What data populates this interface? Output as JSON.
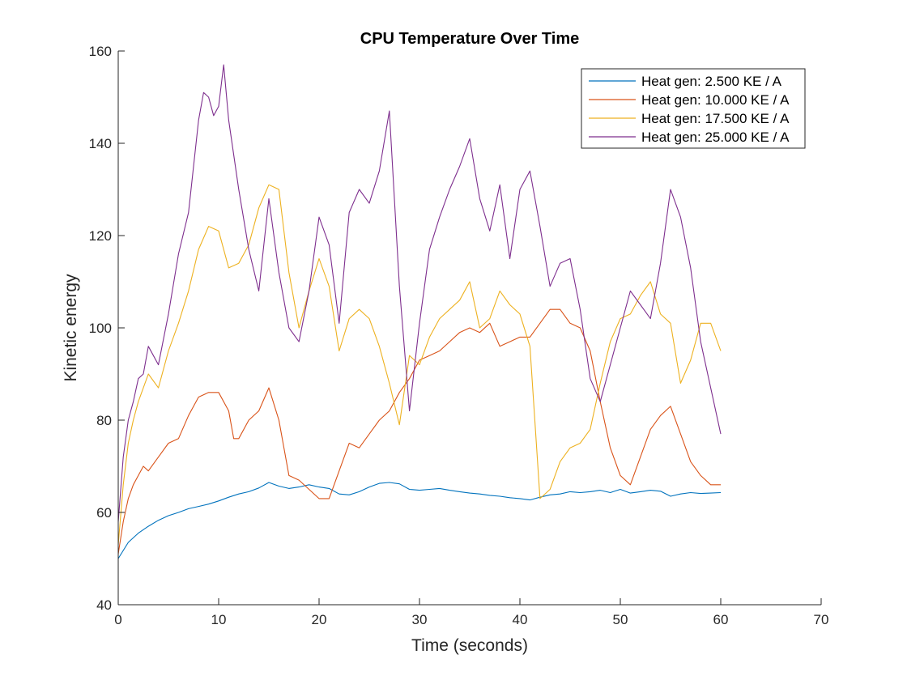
{
  "chart_data": {
    "type": "line",
    "title": "CPU Temperature Over Time",
    "xlabel": "Time (seconds)",
    "ylabel": "Kinetic energy",
    "xlim": [
      0,
      70
    ],
    "ylim": [
      40,
      160
    ],
    "xticks": [
      0,
      10,
      20,
      30,
      40,
      50,
      60,
      70
    ],
    "yticks": [
      40,
      60,
      80,
      100,
      120,
      140,
      160
    ],
    "xtick_labels": [
      "0",
      "10",
      "20",
      "30",
      "40",
      "50",
      "60",
      "70"
    ],
    "ytick_labels": [
      "40",
      "60",
      "80",
      "100",
      "120",
      "140",
      "160"
    ],
    "grid": false,
    "legend_position": "top-right",
    "series": [
      {
        "name": "Heat gen: 2.500 KE / A",
        "color": "#0072BD",
        "x": [
          0,
          1,
          2,
          3,
          4,
          5,
          6,
          7,
          8,
          9,
          10,
          11,
          12,
          13,
          14,
          15,
          16,
          17,
          18,
          19,
          20,
          21,
          22,
          23,
          24,
          25,
          26,
          27,
          28,
          29,
          30,
          31,
          32,
          33,
          34,
          35,
          36,
          37,
          38,
          39,
          40,
          41,
          42,
          43,
          44,
          45,
          46,
          47,
          48,
          49,
          50,
          51,
          52,
          53,
          54,
          55,
          56,
          57,
          58,
          59,
          60
        ],
        "y": [
          50,
          53.5,
          55.5,
          57,
          58.3,
          59.3,
          60,
          60.8,
          61.3,
          61.8,
          62.5,
          63.3,
          64,
          64.5,
          65.3,
          66.5,
          65.7,
          65.2,
          65.5,
          66,
          65.5,
          65.2,
          64,
          63.8,
          64.5,
          65.5,
          66.3,
          66.5,
          66.2,
          65,
          64.8,
          65,
          65.2,
          64.8,
          64.5,
          64.2,
          64,
          63.7,
          63.5,
          63.2,
          63,
          62.7,
          63.3,
          63.8,
          64,
          64.5,
          64.3,
          64.5,
          64.8,
          64.3,
          65,
          64.2,
          64.5,
          64.8,
          64.6,
          63.5,
          64,
          64.3,
          64.1,
          64.2,
          64.3
        ]
      },
      {
        "name": "Heat gen: 10.000 KE / A",
        "color": "#D95319",
        "x": [
          0,
          0.5,
          1,
          1.5,
          2,
          2.5,
          3,
          4,
          5,
          6,
          7,
          8,
          9,
          10,
          11,
          11.5,
          12,
          13,
          14,
          15,
          16,
          16.5,
          17,
          18,
          19,
          20,
          21,
          22,
          23,
          24,
          25,
          26,
          27,
          28,
          29,
          30,
          31,
          32,
          33,
          34,
          35,
          36,
          37,
          38,
          39,
          40,
          41,
          42,
          43,
          44,
          45,
          46,
          47,
          48,
          49,
          50,
          51,
          52,
          53,
          54,
          55,
          56,
          57,
          58,
          59,
          60
        ],
        "y": [
          51,
          58,
          63,
          66,
          68,
          70,
          69,
          72,
          75,
          76,
          81,
          85,
          86,
          86,
          82,
          76,
          76,
          80,
          82,
          87,
          80,
          74,
          68,
          67,
          65,
          63,
          63,
          69,
          75,
          74,
          77,
          80,
          82,
          86,
          89,
          93,
          94,
          95,
          97,
          99,
          100,
          99,
          101,
          96,
          97,
          98,
          98,
          101,
          104,
          104,
          101,
          100,
          95,
          84,
          74,
          68,
          66,
          72,
          78,
          81,
          83,
          77,
          71,
          68,
          66,
          66
        ]
      },
      {
        "name": "Heat gen: 17.500 KE / A",
        "color": "#EDB120",
        "x": [
          0,
          0.5,
          1,
          1.5,
          2,
          3,
          4,
          5,
          6,
          7,
          8,
          9,
          10,
          11,
          12,
          13,
          14,
          15,
          16,
          17,
          18,
          19,
          20,
          21,
          22,
          23,
          24,
          25,
          26,
          27,
          28,
          29,
          30,
          31,
          32,
          33,
          34,
          35,
          36,
          37,
          38,
          39,
          40,
          41,
          42,
          43,
          44,
          45,
          46,
          47,
          48,
          49,
          50,
          51,
          52,
          53,
          54,
          55,
          56,
          57,
          58,
          59,
          60
        ],
        "y": [
          53,
          66,
          75,
          80,
          84,
          90,
          87,
          95,
          101,
          108,
          117,
          122,
          121,
          113,
          114,
          118,
          126,
          131,
          130,
          112,
          100,
          108,
          115,
          109,
          95,
          102,
          104,
          102,
          96,
          88,
          79,
          94,
          92,
          98,
          102,
          104,
          106,
          110,
          100,
          102,
          108,
          105,
          103,
          96,
          63,
          65,
          71,
          74,
          75,
          78,
          88,
          97,
          102,
          103,
          107,
          110,
          103,
          101,
          88,
          93,
          101,
          101,
          95
        ]
      },
      {
        "name": "Heat gen: 25.000 KE / A",
        "color": "#7E2F8E",
        "x": [
          0,
          0.5,
          1,
          1.5,
          2,
          2.5,
          3,
          3.5,
          4,
          5,
          6,
          7,
          8,
          8.5,
          9,
          9.5,
          10,
          10.5,
          11,
          12,
          13,
          14,
          15,
          16,
          17,
          18,
          19,
          20,
          21,
          22,
          23,
          24,
          25,
          26,
          27,
          28,
          29,
          30,
          31,
          32,
          33,
          34,
          35,
          36,
          37,
          38,
          39,
          40,
          41,
          42,
          43,
          44,
          45,
          46,
          47,
          48,
          49,
          50,
          51,
          52,
          53,
          54,
          55,
          56,
          57,
          58,
          59,
          60
        ],
        "y": [
          58,
          72,
          80,
          84,
          89,
          90,
          96,
          94,
          92,
          103,
          116,
          125,
          145,
          151,
          150,
          146,
          148,
          157,
          145,
          130,
          117,
          108,
          128,
          112,
          100,
          97,
          108,
          124,
          118,
          101,
          125,
          130,
          127,
          134,
          147,
          109,
          82,
          101,
          117,
          124,
          130,
          135,
          141,
          128,
          121,
          131,
          115,
          130,
          134,
          122,
          109,
          114,
          115,
          104,
          89,
          84,
          92,
          100,
          108,
          105,
          102,
          114,
          130,
          124,
          113,
          97,
          87,
          77
        ]
      }
    ]
  }
}
